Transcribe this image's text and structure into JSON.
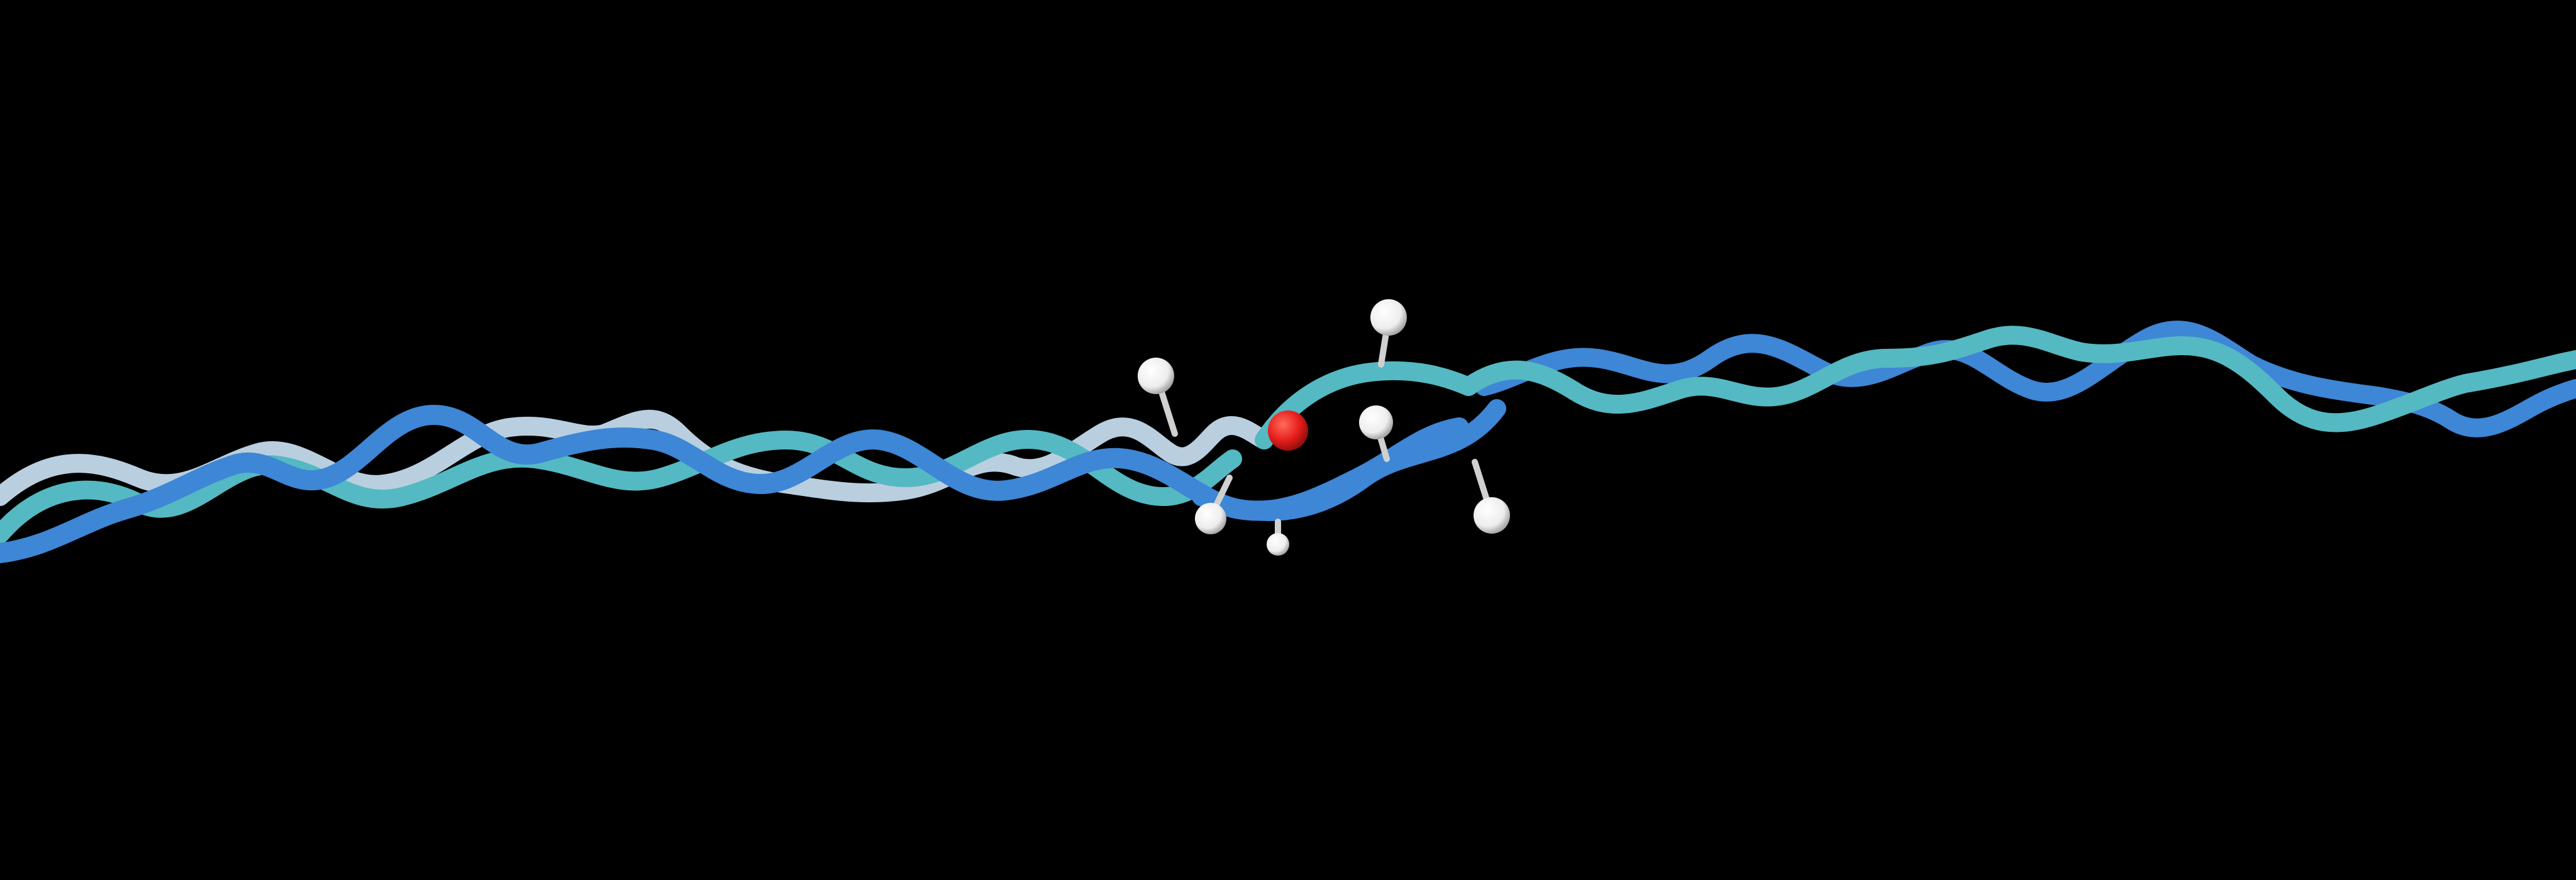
{
  "scene": {
    "subject": "collagen-triple-helix",
    "background": "#000000",
    "colors": {
      "strand_blue": "#3E86D6",
      "strand_teal": "#54B9C2",
      "strand_pale": "#B9CFE0",
      "atom_hydrogen": "#F4F4F4",
      "atom_oxygen": "#E8201D",
      "bond": "#D0D0D0"
    },
    "strands": [
      {
        "id": "strand-blue"
      },
      {
        "id": "strand-teal"
      },
      {
        "id": "strand-pale"
      }
    ],
    "atoms": [
      {
        "id": "hydrogen-atom"
      },
      {
        "id": "hydrogen-atom"
      },
      {
        "id": "hydrogen-atom"
      },
      {
        "id": "hydrogen-atom"
      },
      {
        "id": "hydrogen-atom"
      },
      {
        "id": "hydrogen-atom"
      },
      {
        "id": "oxygen-atom"
      }
    ]
  }
}
